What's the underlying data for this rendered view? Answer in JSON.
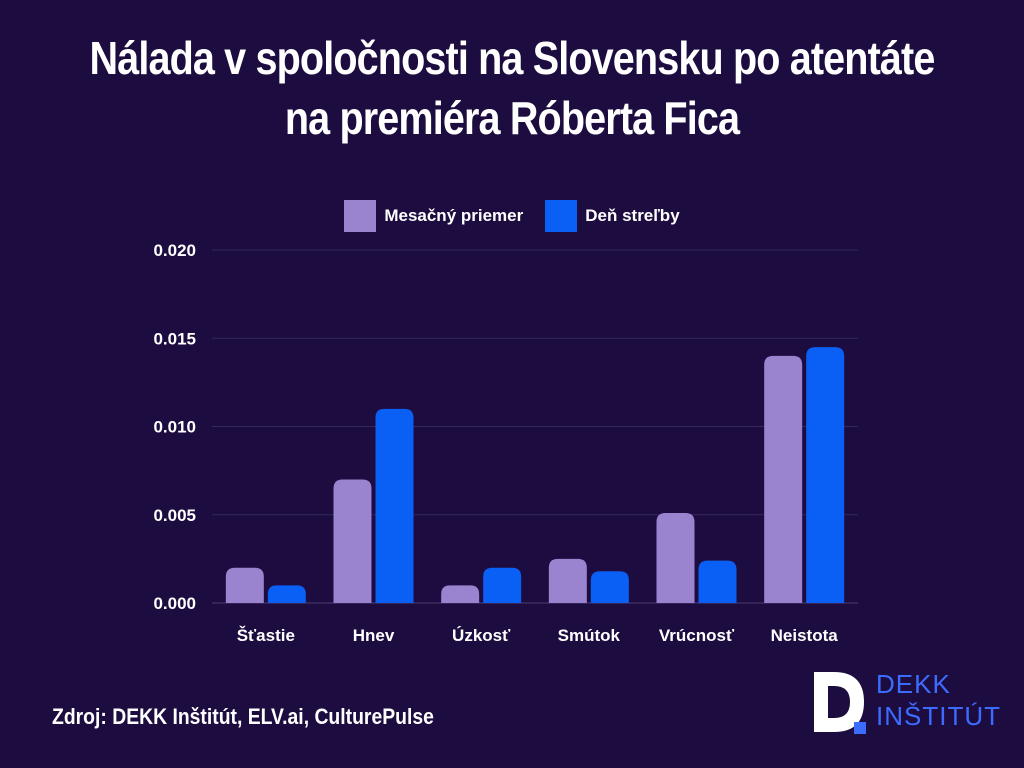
{
  "title_line1": "Nálada v spoločnosti na Slovensku po atentáte",
  "title_line2": "na premiéra Róberta Fica",
  "source": "Zdroj: DEKK Inštitút, ELV.ai, CulturePulse",
  "logo": {
    "line1": "DEKK",
    "line2": "INŠTITÚT",
    "color": "#3b6cff"
  },
  "chart_data": {
    "type": "bar",
    "categories": [
      "Šťastie",
      "Hnev",
      "Úzkosť",
      "Smútok",
      "Vrúcnosť",
      "Neistota"
    ],
    "series": [
      {
        "name": "Mesačný priemer",
        "color": "#9a83cf",
        "values": [
          0.002,
          0.007,
          0.001,
          0.0025,
          0.0051,
          0.014
        ]
      },
      {
        "name": "Deň streľby",
        "color": "#0a5ff5",
        "values": [
          0.001,
          0.011,
          0.002,
          0.0018,
          0.0024,
          0.0145
        ]
      }
    ],
    "ylim": [
      0,
      0.02
    ],
    "yticks": [
      "0.000",
      "0.005",
      "0.010",
      "0.015",
      "0.020"
    ],
    "legend_position": "top-center",
    "grid": true
  }
}
